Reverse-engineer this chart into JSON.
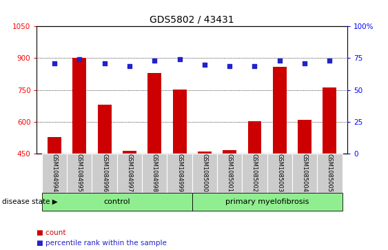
{
  "title": "GDS5802 / 43431",
  "samples": [
    "GSM1084994",
    "GSM1084995",
    "GSM1084996",
    "GSM1084997",
    "GSM1084998",
    "GSM1084999",
    "GSM1085000",
    "GSM1085001",
    "GSM1085002",
    "GSM1085003",
    "GSM1085004",
    "GSM1085005"
  ],
  "counts": [
    530,
    900,
    680,
    465,
    830,
    752,
    460,
    468,
    603,
    858,
    610,
    762
  ],
  "percentiles": [
    71,
    74,
    71,
    69,
    73,
    74,
    70,
    69,
    69,
    73,
    71,
    73
  ],
  "ylim_left": [
    450,
    1050
  ],
  "ylim_right": [
    0,
    100
  ],
  "yticks_left": [
    450,
    600,
    750,
    900,
    1050
  ],
  "yticks_right": [
    0,
    25,
    50,
    75,
    100
  ],
  "ytick_right_labels": [
    "0",
    "25",
    "50",
    "75",
    "100%"
  ],
  "bar_color": "#cc0000",
  "dot_color": "#2222cc",
  "control_label": "control",
  "myelofibrosis_label": "primary myelofibrosis",
  "disease_state_label": "disease state",
  "legend_count": "count",
  "legend_percentile": "percentile rank within the sample",
  "group_bg_color": "#90ee90",
  "tick_bg_color": "#cccccc",
  "title_fontsize": 10,
  "tick_fontsize": 7.5,
  "label_fontsize": 8,
  "n_control": 6,
  "n_total": 12
}
